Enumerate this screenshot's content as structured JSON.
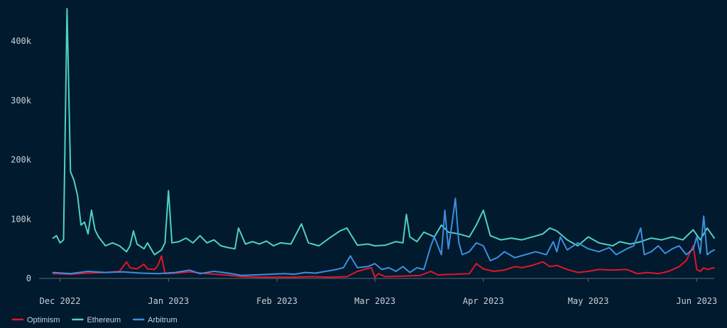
{
  "colors": {
    "background": "#011a2e",
    "axis": "#5d6b78",
    "text": "#c9d1d9"
  },
  "chart_data": {
    "type": "line",
    "title": "",
    "xlabel": "",
    "ylabel": "",
    "ylim": [
      0,
      460000
    ],
    "yticks": [
      0,
      100000,
      200000,
      300000,
      400000
    ],
    "ytick_labels": [
      "0",
      "100k",
      "200k",
      "300k",
      "400k"
    ],
    "xlim": [
      "2022-11-25",
      "2023-06-06"
    ],
    "xticks": [
      "2022-12-01",
      "2023-01-01",
      "2023-02-01",
      "2023-03-01",
      "2023-04-01",
      "2023-05-01",
      "2023-06-01"
    ],
    "xtick_labels": [
      "Dec 2022",
      "Jan 2023",
      "Feb 2023",
      "Mar 2023",
      "Apr 2023",
      "May 2023",
      "Jun 2023"
    ],
    "grid": false,
    "legend_position": "bottom-left",
    "series": [
      {
        "name": "Optimism",
        "color": "#e0162b",
        "points": [
          [
            "2022-11-29",
            8000
          ],
          [
            "2022-12-04",
            7000
          ],
          [
            "2022-12-09",
            9000
          ],
          [
            "2022-12-14",
            10000
          ],
          [
            "2022-12-18",
            12000
          ],
          [
            "2022-12-20",
            28000
          ],
          [
            "2022-12-21",
            18000
          ],
          [
            "2022-12-23",
            16000
          ],
          [
            "2022-12-25",
            24000
          ],
          [
            "2022-12-26",
            16000
          ],
          [
            "2022-12-28",
            15000
          ],
          [
            "2022-12-29",
            22000
          ],
          [
            "2022-12-30",
            38000
          ],
          [
            "2022-12-31",
            8000
          ],
          [
            "2023-01-03",
            9000
          ],
          [
            "2023-01-07",
            11000
          ],
          [
            "2023-01-12",
            8000
          ],
          [
            "2023-01-17",
            6000
          ],
          [
            "2023-01-22",
            3000
          ],
          [
            "2023-01-27",
            2000
          ],
          [
            "2023-02-01",
            2000
          ],
          [
            "2023-02-06",
            2000
          ],
          [
            "2023-02-11",
            3000
          ],
          [
            "2023-02-16",
            2000
          ],
          [
            "2023-02-21",
            3000
          ],
          [
            "2023-02-24",
            12000
          ],
          [
            "2023-02-26",
            15000
          ],
          [
            "2023-02-28",
            18000
          ],
          [
            "2023-03-01",
            2000
          ],
          [
            "2023-03-02",
            8000
          ],
          [
            "2023-03-04",
            3000
          ],
          [
            "2023-03-09",
            4000
          ],
          [
            "2023-03-14",
            5000
          ],
          [
            "2023-03-17",
            12000
          ],
          [
            "2023-03-19",
            6000
          ],
          [
            "2023-03-24",
            7000
          ],
          [
            "2023-03-28",
            8000
          ],
          [
            "2023-03-30",
            25000
          ],
          [
            "2023-04-01",
            16000
          ],
          [
            "2023-04-04",
            12000
          ],
          [
            "2023-04-07",
            14000
          ],
          [
            "2023-04-10",
            20000
          ],
          [
            "2023-04-12",
            18000
          ],
          [
            "2023-04-15",
            22000
          ],
          [
            "2023-04-18",
            28000
          ],
          [
            "2023-04-20",
            20000
          ],
          [
            "2023-04-22",
            22000
          ],
          [
            "2023-04-25",
            15000
          ],
          [
            "2023-04-28",
            10000
          ],
          [
            "2023-05-01",
            12000
          ],
          [
            "2023-05-04",
            15000
          ],
          [
            "2023-05-08",
            14000
          ],
          [
            "2023-05-12",
            15000
          ],
          [
            "2023-05-15",
            8000
          ],
          [
            "2023-05-18",
            10000
          ],
          [
            "2023-05-21",
            8000
          ],
          [
            "2023-05-24",
            12000
          ],
          [
            "2023-05-27",
            20000
          ],
          [
            "2023-05-29",
            30000
          ],
          [
            "2023-05-31",
            55000
          ],
          [
            "2023-06-01",
            15000
          ],
          [
            "2023-06-02",
            12000
          ],
          [
            "2023-06-03",
            18000
          ],
          [
            "2023-06-04",
            15000
          ],
          [
            "2023-06-06",
            18000
          ]
        ]
      },
      {
        "name": "Ethereum",
        "color": "#4fd1c5",
        "points": [
          [
            "2022-11-29",
            68000
          ],
          [
            "2022-11-30",
            72000
          ],
          [
            "2022-12-01",
            60000
          ],
          [
            "2022-12-02",
            65000
          ],
          [
            "2022-12-03",
            455000
          ],
          [
            "2022-12-04",
            180000
          ],
          [
            "2022-12-05",
            165000
          ],
          [
            "2022-12-06",
            140000
          ],
          [
            "2022-12-07",
            90000
          ],
          [
            "2022-12-08",
            95000
          ],
          [
            "2022-12-09",
            75000
          ],
          [
            "2022-12-10",
            115000
          ],
          [
            "2022-12-11",
            82000
          ],
          [
            "2022-12-12",
            70000
          ],
          [
            "2022-12-14",
            55000
          ],
          [
            "2022-12-16",
            60000
          ],
          [
            "2022-12-18",
            55000
          ],
          [
            "2022-12-20",
            45000
          ],
          [
            "2022-12-21",
            55000
          ],
          [
            "2022-12-22",
            80000
          ],
          [
            "2022-12-23",
            58000
          ],
          [
            "2022-12-25",
            50000
          ],
          [
            "2022-12-26",
            60000
          ],
          [
            "2022-12-27",
            50000
          ],
          [
            "2022-12-28",
            40000
          ],
          [
            "2022-12-30",
            48000
          ],
          [
            "2022-12-31",
            60000
          ],
          [
            "2023-01-01",
            148000
          ],
          [
            "2023-01-02",
            60000
          ],
          [
            "2023-01-04",
            62000
          ],
          [
            "2023-01-06",
            68000
          ],
          [
            "2023-01-08",
            60000
          ],
          [
            "2023-01-10",
            72000
          ],
          [
            "2023-01-12",
            60000
          ],
          [
            "2023-01-14",
            65000
          ],
          [
            "2023-01-16",
            55000
          ],
          [
            "2023-01-18",
            52000
          ],
          [
            "2023-01-20",
            50000
          ],
          [
            "2023-01-21",
            85000
          ],
          [
            "2023-01-23",
            58000
          ],
          [
            "2023-01-25",
            62000
          ],
          [
            "2023-01-27",
            58000
          ],
          [
            "2023-01-29",
            63000
          ],
          [
            "2023-01-31",
            55000
          ],
          [
            "2023-02-02",
            60000
          ],
          [
            "2023-02-05",
            58000
          ],
          [
            "2023-02-08",
            92000
          ],
          [
            "2023-02-10",
            60000
          ],
          [
            "2023-02-13",
            55000
          ],
          [
            "2023-02-16",
            68000
          ],
          [
            "2023-02-19",
            80000
          ],
          [
            "2023-02-21",
            85000
          ],
          [
            "2023-02-24",
            56000
          ],
          [
            "2023-02-27",
            58000
          ],
          [
            "2023-03-01",
            55000
          ],
          [
            "2023-03-04",
            56000
          ],
          [
            "2023-03-07",
            62000
          ],
          [
            "2023-03-09",
            60000
          ],
          [
            "2023-03-10",
            108000
          ],
          [
            "2023-03-11",
            70000
          ],
          [
            "2023-03-13",
            62000
          ],
          [
            "2023-03-15",
            78000
          ],
          [
            "2023-03-18",
            70000
          ],
          [
            "2023-03-20",
            90000
          ],
          [
            "2023-03-22",
            78000
          ],
          [
            "2023-03-25",
            75000
          ],
          [
            "2023-03-28",
            70000
          ],
          [
            "2023-03-30",
            90000
          ],
          [
            "2023-04-01",
            115000
          ],
          [
            "2023-04-03",
            72000
          ],
          [
            "2023-04-06",
            65000
          ],
          [
            "2023-04-09",
            68000
          ],
          [
            "2023-04-12",
            65000
          ],
          [
            "2023-04-15",
            70000
          ],
          [
            "2023-04-18",
            75000
          ],
          [
            "2023-04-20",
            85000
          ],
          [
            "2023-04-22",
            80000
          ],
          [
            "2023-04-25",
            65000
          ],
          [
            "2023-04-28",
            55000
          ],
          [
            "2023-05-01",
            70000
          ],
          [
            "2023-05-04",
            60000
          ],
          [
            "2023-05-08",
            55000
          ],
          [
            "2023-05-10",
            62000
          ],
          [
            "2023-05-13",
            58000
          ],
          [
            "2023-05-16",
            62000
          ],
          [
            "2023-05-19",
            68000
          ],
          [
            "2023-05-22",
            65000
          ],
          [
            "2023-05-25",
            70000
          ],
          [
            "2023-05-28",
            65000
          ],
          [
            "2023-05-31",
            82000
          ],
          [
            "2023-06-02",
            65000
          ],
          [
            "2023-06-04",
            85000
          ],
          [
            "2023-06-06",
            68000
          ]
        ]
      },
      {
        "name": "Arbitrum",
        "color": "#3b8fe0",
        "points": [
          [
            "2022-11-29",
            10000
          ],
          [
            "2022-12-04",
            8000
          ],
          [
            "2022-12-09",
            12000
          ],
          [
            "2022-12-14",
            10000
          ],
          [
            "2022-12-19",
            11000
          ],
          [
            "2022-12-24",
            9000
          ],
          [
            "2022-12-29",
            8000
          ],
          [
            "2023-01-03",
            10000
          ],
          [
            "2023-01-07",
            14000
          ],
          [
            "2023-01-10",
            8000
          ],
          [
            "2023-01-14",
            12000
          ],
          [
            "2023-01-18",
            9000
          ],
          [
            "2023-01-22",
            5000
          ],
          [
            "2023-01-26",
            6000
          ],
          [
            "2023-01-30",
            7000
          ],
          [
            "2023-02-03",
            8000
          ],
          [
            "2023-02-06",
            7000
          ],
          [
            "2023-02-09",
            10000
          ],
          [
            "2023-02-12",
            9000
          ],
          [
            "2023-02-15",
            12000
          ],
          [
            "2023-02-18",
            15000
          ],
          [
            "2023-02-20",
            18000
          ],
          [
            "2023-02-22",
            38000
          ],
          [
            "2023-02-24",
            18000
          ],
          [
            "2023-02-27",
            20000
          ],
          [
            "2023-03-01",
            25000
          ],
          [
            "2023-03-03",
            15000
          ],
          [
            "2023-03-05",
            18000
          ],
          [
            "2023-03-07",
            12000
          ],
          [
            "2023-03-09",
            20000
          ],
          [
            "2023-03-11",
            10000
          ],
          [
            "2023-03-13",
            18000
          ],
          [
            "2023-03-15",
            15000
          ],
          [
            "2023-03-17",
            55000
          ],
          [
            "2023-03-18",
            70000
          ],
          [
            "2023-03-20",
            40000
          ],
          [
            "2023-03-21",
            115000
          ],
          [
            "2023-03-22",
            50000
          ],
          [
            "2023-03-23",
            90000
          ],
          [
            "2023-03-24",
            135000
          ],
          [
            "2023-03-25",
            60000
          ],
          [
            "2023-03-26",
            40000
          ],
          [
            "2023-03-28",
            45000
          ],
          [
            "2023-03-30",
            60000
          ],
          [
            "2023-04-01",
            55000
          ],
          [
            "2023-04-03",
            30000
          ],
          [
            "2023-04-05",
            35000
          ],
          [
            "2023-04-07",
            45000
          ],
          [
            "2023-04-10",
            35000
          ],
          [
            "2023-04-13",
            40000
          ],
          [
            "2023-04-16",
            45000
          ],
          [
            "2023-04-19",
            40000
          ],
          [
            "2023-04-21",
            62000
          ],
          [
            "2023-04-22",
            45000
          ],
          [
            "2023-04-23",
            70000
          ],
          [
            "2023-04-25",
            48000
          ],
          [
            "2023-04-28",
            60000
          ],
          [
            "2023-05-01",
            50000
          ],
          [
            "2023-05-04",
            45000
          ],
          [
            "2023-05-07",
            52000
          ],
          [
            "2023-05-09",
            40000
          ],
          [
            "2023-05-12",
            50000
          ],
          [
            "2023-05-14",
            55000
          ],
          [
            "2023-05-16",
            85000
          ],
          [
            "2023-05-17",
            40000
          ],
          [
            "2023-05-19",
            45000
          ],
          [
            "2023-05-21",
            55000
          ],
          [
            "2023-05-23",
            42000
          ],
          [
            "2023-05-25",
            50000
          ],
          [
            "2023-05-27",
            55000
          ],
          [
            "2023-05-29",
            40000
          ],
          [
            "2023-05-31",
            50000
          ],
          [
            "2023-06-01",
            70000
          ],
          [
            "2023-06-02",
            42000
          ],
          [
            "2023-06-03",
            105000
          ],
          [
            "2023-06-04",
            40000
          ],
          [
            "2023-06-05",
            45000
          ],
          [
            "2023-06-06",
            48000
          ]
        ]
      }
    ]
  }
}
